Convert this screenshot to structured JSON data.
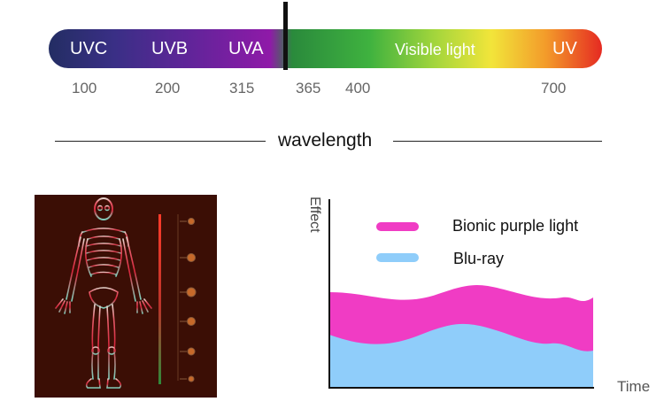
{
  "spectrum": {
    "bands": [
      "UVC",
      "UVB",
      "UVA",
      "Visible light",
      "UV"
    ],
    "ticks": [
      "100",
      "200",
      "315",
      "365",
      "400",
      "700"
    ],
    "axis_label": "wavelength"
  },
  "chart_data": {
    "type": "area",
    "xlabel": "Time",
    "ylabel": "Effect",
    "series": [
      {
        "name": "Bionic purple light",
        "color": "#f03cc4"
      },
      {
        "name": "Blu-ray",
        "color": "#8fcdfa"
      }
    ]
  },
  "colors": {
    "panel_bg": "#3b0e05",
    "magenta": "#f03cc4",
    "light_blue": "#8fcdfa"
  }
}
